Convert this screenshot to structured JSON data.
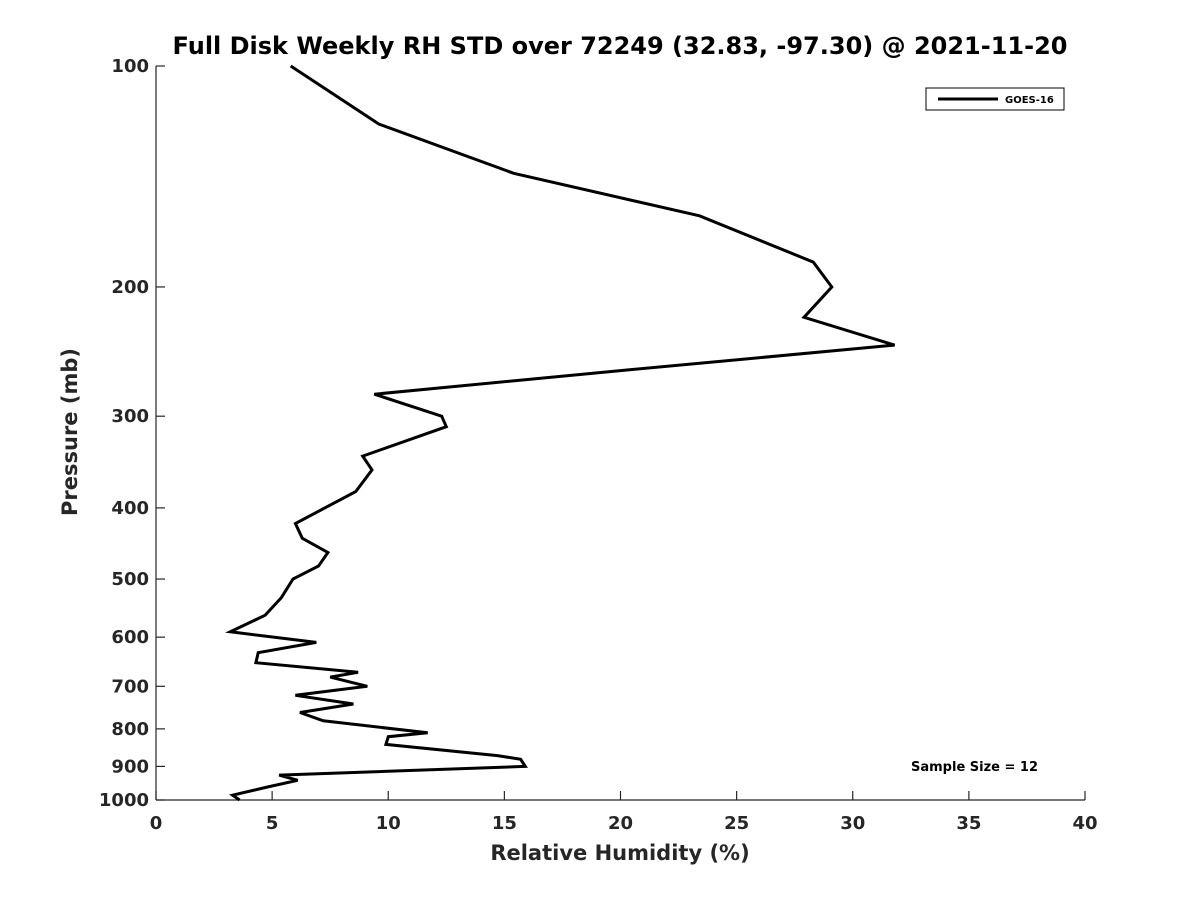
{
  "chart_data": {
    "type": "line",
    "title": "Full Disk Weekly RH STD over 72249 (32.83, -97.30) @ 2021-11-20",
    "xlabel": "Relative Humidity (%)",
    "ylabel": "Pressure (mb)",
    "xlim": [
      0,
      40
    ],
    "ylim": [
      100,
      1000
    ],
    "y_scale": "log",
    "y_reversed": true,
    "grid": false,
    "xticks": [
      0,
      5,
      10,
      15,
      20,
      25,
      30,
      35,
      40
    ],
    "yticks": [
      100,
      200,
      300,
      400,
      500,
      600,
      700,
      800,
      900,
      1000
    ],
    "legend": {
      "position": "top-right",
      "entries": [
        "GOES-16"
      ]
    },
    "annotation": "Sample Size = 12",
    "series": [
      {
        "name": "GOES-16",
        "color": "#000000",
        "points": [
          [
            5.8,
            100
          ],
          [
            9.6,
            120
          ],
          [
            15.4,
            140
          ],
          [
            23.4,
            160
          ],
          [
            28.3,
            185
          ],
          [
            29.1,
            200
          ],
          [
            27.9,
            220
          ],
          [
            31.8,
            240
          ],
          [
            20.0,
            260
          ],
          [
            9.4,
            280
          ],
          [
            12.3,
            300
          ],
          [
            12.5,
            310
          ],
          [
            8.9,
            340
          ],
          [
            9.3,
            355
          ],
          [
            8.6,
            380
          ],
          [
            6.0,
            420
          ],
          [
            6.3,
            440
          ],
          [
            7.4,
            460
          ],
          [
            7.0,
            480
          ],
          [
            5.9,
            500
          ],
          [
            5.4,
            530
          ],
          [
            4.7,
            560
          ],
          [
            3.2,
            590
          ],
          [
            6.9,
            610
          ],
          [
            4.4,
            630
          ],
          [
            4.3,
            650
          ],
          [
            8.7,
            670
          ],
          [
            7.5,
            680
          ],
          [
            9.1,
            700
          ],
          [
            6.0,
            720
          ],
          [
            8.5,
            740
          ],
          [
            6.2,
            760
          ],
          [
            7.2,
            780
          ],
          [
            11.7,
            810
          ],
          [
            10.0,
            820
          ],
          [
            9.9,
            840
          ],
          [
            14.7,
            870
          ],
          [
            15.7,
            880
          ],
          [
            15.9,
            900
          ],
          [
            5.3,
            925
          ],
          [
            6.1,
            940
          ],
          [
            4.8,
            960
          ],
          [
            3.3,
            985
          ],
          [
            3.6,
            1000
          ]
        ]
      }
    ]
  }
}
